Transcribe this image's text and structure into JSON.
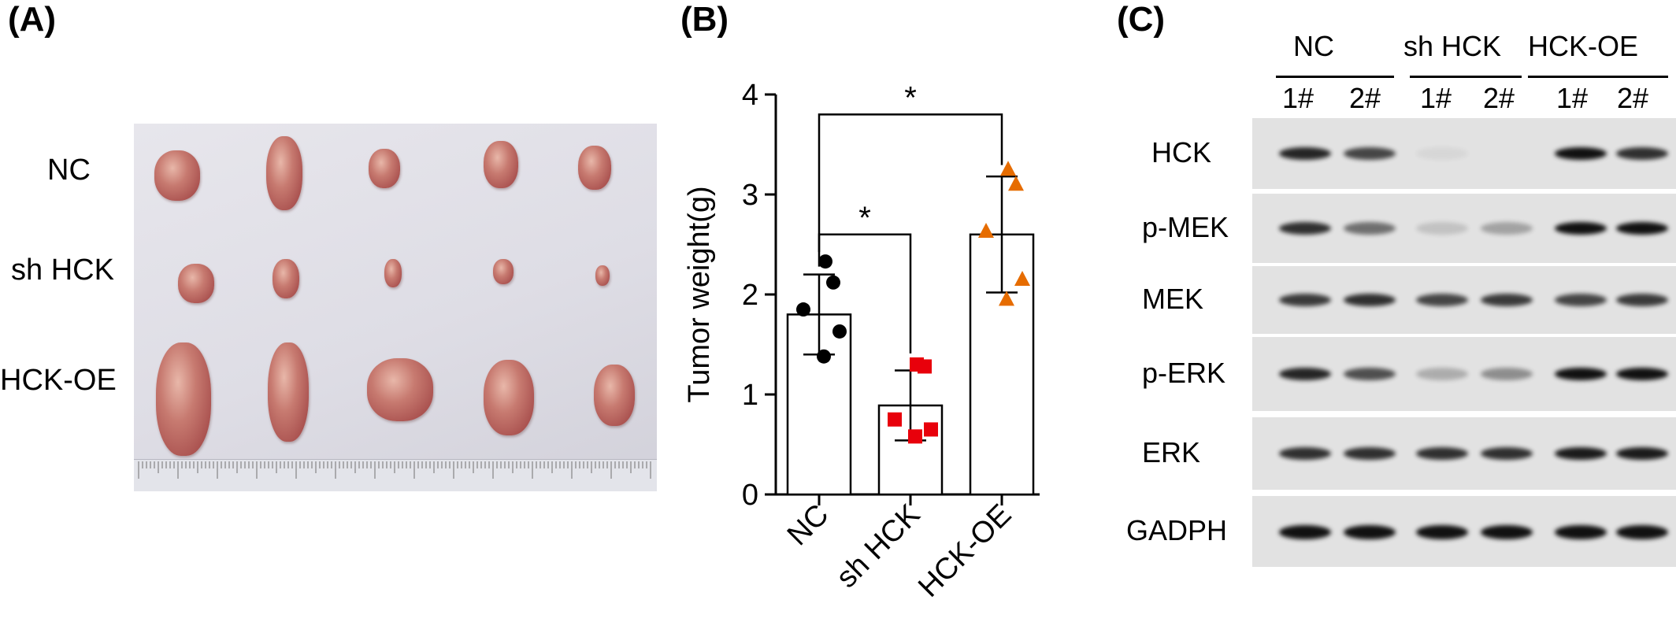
{
  "panels": {
    "a": "(A)",
    "b": "(B)",
    "c": "(C)"
  },
  "panel_a": {
    "row_labels": [
      "NC",
      "sh HCK",
      "HCK-OE"
    ]
  },
  "chart_data": {
    "type": "bar",
    "categories": [
      "NC",
      "sh HCK",
      "HCK-OE"
    ],
    "values": [
      1.8,
      0.89,
      2.6
    ],
    "error": [
      0.4,
      0.35,
      0.58
    ],
    "points": [
      [
        2.33,
        2.12,
        1.85,
        1.63,
        1.38
      ],
      [
        1.3,
        1.28,
        0.75,
        0.65,
        0.58
      ],
      [
        3.25,
        3.1,
        2.63,
        2.15,
        1.95
      ]
    ],
    "colors": [
      "#000000",
      "#e8000b",
      "#e66c00"
    ],
    "markers": [
      "circle",
      "square",
      "triangle"
    ],
    "ylabel": "Tumor weight(g)",
    "xlabel": "",
    "ylim": [
      0,
      4
    ],
    "yticks": [
      "0",
      "1",
      "2",
      "3",
      "4"
    ],
    "significance": [
      {
        "from": "NC",
        "to": "sh HCK",
        "label": "*"
      },
      {
        "from": "NC",
        "to": "HCK-OE",
        "label": "*"
      }
    ],
    "grid": false
  },
  "panel_c": {
    "groups": [
      "NC",
      "sh HCK",
      "HCK-OE"
    ],
    "lanes": [
      "1#",
      "2#",
      "1#",
      "2#",
      "1#",
      "2#"
    ],
    "blots": [
      "HCK",
      "p-MEK",
      "MEK",
      "p-ERK",
      "ERK",
      "GADPH"
    ]
  }
}
